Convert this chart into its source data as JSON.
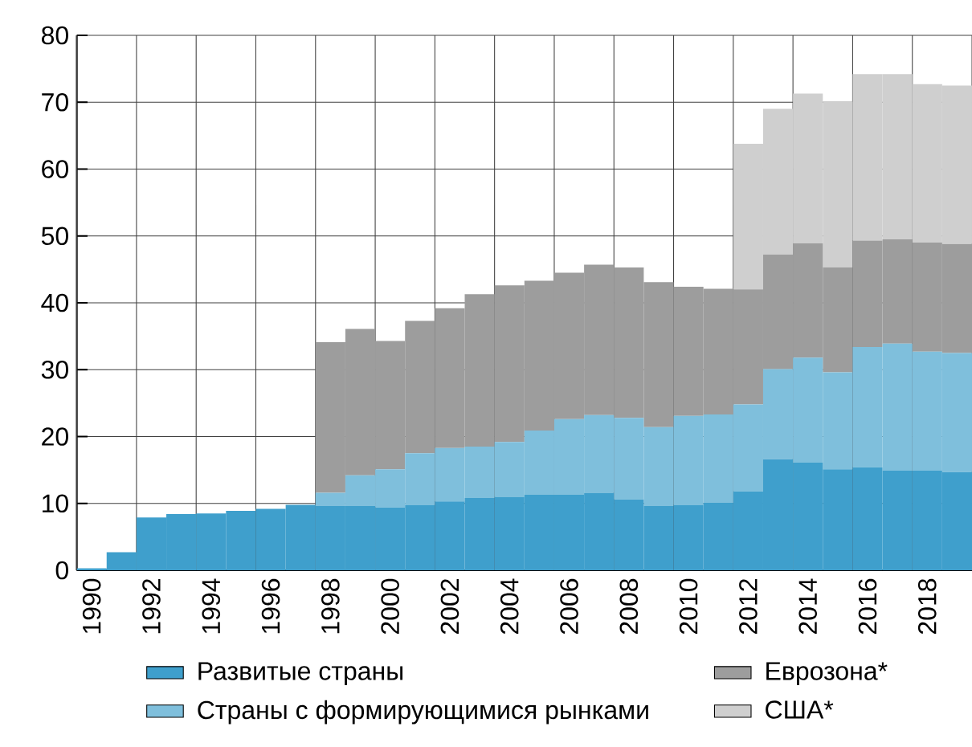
{
  "chart_data": {
    "type": "bar",
    "stacked": true,
    "categories": [
      "1990",
      null,
      "1992",
      null,
      "1994",
      null,
      "1996",
      null,
      "1998",
      null,
      "2000",
      null,
      "2002",
      null,
      "2004",
      null,
      "2006",
      null,
      "2008",
      null,
      "2010",
      null,
      "2012",
      null,
      "2014",
      null,
      "2016",
      null,
      "2018",
      null
    ],
    "series": [
      {
        "name": "Развитые страны",
        "color": "#3f9fcc",
        "values": [
          0.3,
          2.7,
          7.9,
          8.4,
          8.5,
          8.9,
          9.2,
          9.8,
          9.6,
          9.6,
          9.4,
          9.8,
          10.3,
          10.8,
          11.0,
          11.3,
          11.3,
          11.6,
          10.6,
          9.6,
          9.8,
          10.1,
          11.8,
          16.6,
          16.1,
          15.1,
          15.4,
          14.9,
          14.9,
          14.7
        ]
      },
      {
        "name": "Страны с формирующимися рынками",
        "color": "#7fbfdc",
        "values": [
          null,
          null,
          null,
          null,
          null,
          null,
          null,
          null,
          2.0,
          4.6,
          5.7,
          7.7,
          8.0,
          7.7,
          8.2,
          9.6,
          11.3,
          11.6,
          12.2,
          11.8,
          13.3,
          13.2,
          13.0,
          13.5,
          15.7,
          14.5,
          18.0,
          19.0,
          17.8,
          17.8
        ]
      },
      {
        "name": "Еврозона*",
        "color": "#9d9d9d",
        "values": [
          null,
          null,
          null,
          null,
          null,
          null,
          null,
          null,
          22.5,
          21.9,
          19.2,
          19.8,
          20.9,
          22.8,
          23.4,
          22.4,
          21.9,
          22.5,
          22.5,
          21.7,
          19.3,
          18.8,
          17.2,
          17.1,
          17.1,
          15.7,
          15.9,
          15.6,
          16.3,
          16.3
        ]
      },
      {
        "name": "США*",
        "color": "#cfcfcf",
        "values": [
          null,
          null,
          null,
          null,
          null,
          null,
          null,
          null,
          null,
          null,
          null,
          null,
          null,
          null,
          null,
          null,
          null,
          null,
          null,
          null,
          null,
          null,
          21.8,
          21.8,
          22.4,
          24.8,
          24.9,
          24.7,
          23.7,
          23.7
        ]
      }
    ],
    "ylim": [
      0,
      80
    ],
    "yticks": [
      0,
      10,
      20,
      30,
      40,
      50,
      60,
      70,
      80
    ],
    "grid": true,
    "legend": "bottom"
  }
}
